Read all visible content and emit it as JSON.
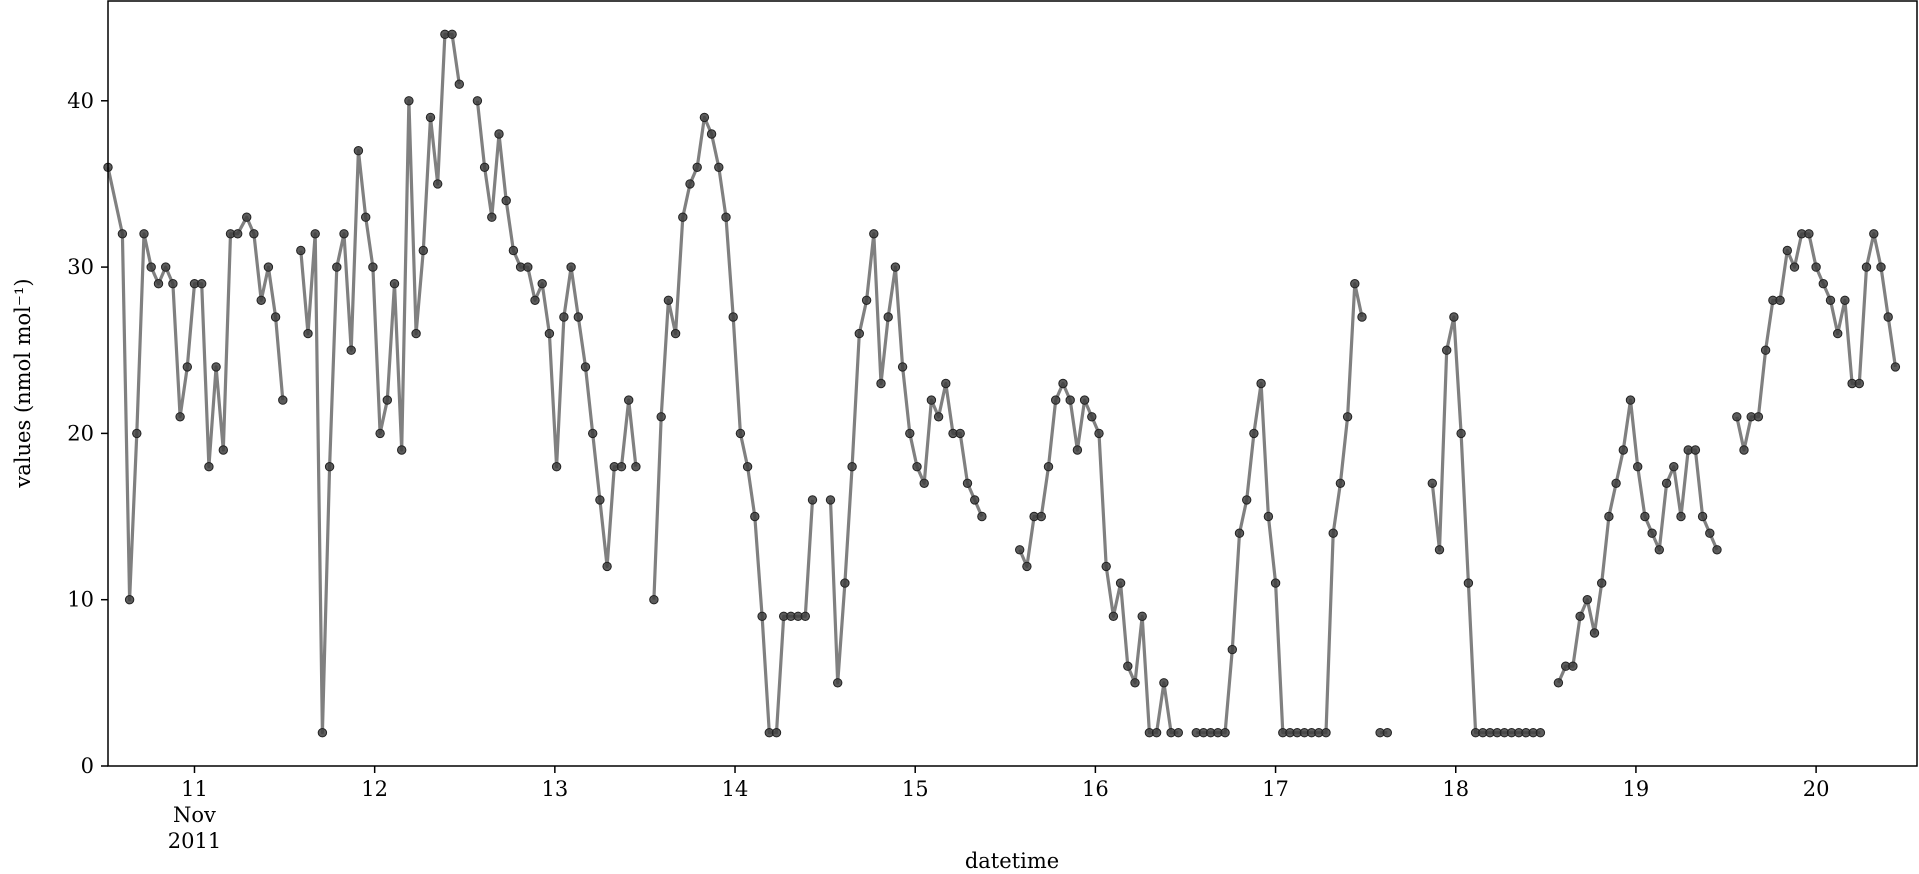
{
  "chart_data": {
    "type": "line",
    "xlabel": "datetime",
    "ylabel": "values (nmol mol⁻¹)",
    "ylim": [
      0,
      46
    ],
    "yticks": [
      0,
      10,
      20,
      30,
      40
    ],
    "xlim": [
      -0.48,
      9.56
    ],
    "xticks": [
      {
        "pos": 0,
        "label": "11",
        "sublabel": "Nov",
        "sublabel2": "2011"
      },
      {
        "pos": 1,
        "label": "12"
      },
      {
        "pos": 2,
        "label": "13"
      },
      {
        "pos": 3,
        "label": "14"
      },
      {
        "pos": 4,
        "label": "15"
      },
      {
        "pos": 5,
        "label": "16"
      },
      {
        "pos": 6,
        "label": "17"
      },
      {
        "pos": 7,
        "label": "18"
      },
      {
        "pos": 8,
        "label": "19"
      },
      {
        "pos": 9,
        "label": "20"
      }
    ],
    "x_unit": "days from 2011-11-11 00:00 (hourly samples)",
    "line_color": "#808080",
    "marker_color": "#404040",
    "grid": false,
    "series": [
      {
        "name": "values",
        "points": [
          [
            -0.48,
            36
          ],
          [
            -0.4,
            32
          ],
          [
            -0.36,
            10
          ],
          [
            -0.32,
            20
          ],
          [
            -0.28,
            32
          ],
          [
            -0.24,
            30
          ],
          [
            -0.2,
            29
          ],
          [
            -0.16,
            30
          ],
          [
            -0.12,
            29
          ],
          [
            -0.08,
            21
          ],
          [
            -0.04,
            24
          ],
          [
            0.0,
            29
          ],
          [
            0.04,
            29
          ],
          [
            0.08,
            18
          ],
          [
            0.12,
            24
          ],
          [
            0.16,
            19
          ],
          [
            0.2,
            32
          ],
          [
            0.24,
            32
          ],
          [
            0.29,
            33
          ],
          [
            0.33,
            32
          ],
          [
            0.37,
            28
          ],
          [
            0.41,
            30
          ],
          [
            0.45,
            27
          ],
          [
            0.49,
            22
          ],
          null,
          [
            0.59,
            31
          ],
          [
            0.63,
            26
          ],
          [
            0.67,
            32
          ],
          [
            0.71,
            2
          ],
          [
            0.75,
            18
          ],
          [
            0.79,
            30
          ],
          [
            0.83,
            32
          ],
          [
            0.87,
            25
          ],
          [
            0.91,
            37
          ],
          [
            0.95,
            33
          ],
          [
            0.99,
            30
          ],
          [
            1.03,
            20
          ],
          [
            1.07,
            22
          ],
          [
            1.11,
            29
          ],
          [
            1.15,
            19
          ],
          [
            1.19,
            40
          ],
          [
            1.23,
            26
          ],
          [
            1.27,
            31
          ],
          [
            1.31,
            39
          ],
          [
            1.35,
            35
          ],
          [
            1.39,
            44
          ],
          [
            1.43,
            44
          ],
          [
            1.47,
            41
          ],
          null,
          [
            1.57,
            40
          ],
          [
            1.61,
            36
          ],
          [
            1.65,
            33
          ],
          [
            1.69,
            38
          ],
          [
            1.73,
            34
          ],
          [
            1.77,
            31
          ],
          [
            1.81,
            30
          ],
          [
            1.85,
            30
          ],
          [
            1.89,
            28
          ],
          [
            1.93,
            29
          ],
          [
            1.97,
            26
          ],
          [
            2.01,
            18
          ],
          [
            2.05,
            27
          ],
          [
            2.09,
            30
          ],
          [
            2.13,
            27
          ],
          [
            2.17,
            24
          ],
          [
            2.21,
            20
          ],
          [
            2.25,
            16
          ],
          [
            2.29,
            12
          ],
          [
            2.33,
            18
          ],
          [
            2.37,
            18
          ],
          [
            2.41,
            22
          ],
          [
            2.45,
            18
          ],
          null,
          [
            2.55,
            10
          ],
          [
            2.59,
            21
          ],
          [
            2.63,
            28
          ],
          [
            2.67,
            26
          ],
          [
            2.71,
            33
          ],
          [
            2.75,
            35
          ],
          [
            2.79,
            36
          ],
          [
            2.83,
            39
          ],
          [
            2.87,
            38
          ],
          [
            2.91,
            36
          ],
          [
            2.95,
            33
          ],
          [
            2.99,
            27
          ],
          [
            3.03,
            20
          ],
          [
            3.07,
            18
          ],
          [
            3.11,
            15
          ],
          [
            3.15,
            9
          ],
          [
            3.19,
            2
          ],
          [
            3.23,
            2
          ],
          [
            3.27,
            9
          ],
          [
            3.31,
            9
          ],
          [
            3.35,
            9
          ],
          [
            3.39,
            9
          ],
          [
            3.43,
            16
          ],
          null,
          [
            3.53,
            16
          ],
          [
            3.57,
            5
          ],
          [
            3.61,
            11
          ],
          [
            3.65,
            18
          ],
          [
            3.69,
            26
          ],
          [
            3.73,
            28
          ],
          [
            3.77,
            32
          ],
          [
            3.81,
            23
          ],
          [
            3.85,
            27
          ],
          [
            3.89,
            30
          ],
          [
            3.93,
            24
          ],
          [
            3.97,
            20
          ],
          [
            4.01,
            18
          ],
          [
            4.05,
            17
          ],
          [
            4.09,
            22
          ],
          [
            4.13,
            21
          ],
          [
            4.17,
            23
          ],
          [
            4.21,
            20
          ],
          [
            4.25,
            20
          ],
          [
            4.29,
            17
          ],
          [
            4.33,
            16
          ],
          [
            4.37,
            15
          ],
          null,
          [
            4.58,
            13
          ],
          [
            4.62,
            12
          ],
          [
            4.66,
            15
          ],
          [
            4.7,
            15
          ],
          [
            4.74,
            18
          ],
          [
            4.78,
            22
          ],
          [
            4.82,
            23
          ],
          [
            4.86,
            22
          ],
          [
            4.9,
            19
          ],
          [
            4.94,
            22
          ],
          [
            4.98,
            21
          ],
          [
            5.02,
            20
          ],
          [
            5.06,
            12
          ],
          [
            5.1,
            9
          ],
          [
            5.14,
            11
          ],
          [
            5.18,
            6
          ],
          [
            5.22,
            5
          ],
          [
            5.26,
            9
          ],
          [
            5.3,
            2
          ],
          [
            5.34,
            2
          ],
          [
            5.38,
            5
          ],
          [
            5.42,
            2
          ],
          [
            5.46,
            2
          ],
          null,
          [
            5.56,
            2
          ],
          [
            5.6,
            2
          ],
          [
            5.64,
            2
          ],
          [
            5.68,
            2
          ],
          [
            5.72,
            2
          ],
          [
            5.76,
            7
          ],
          [
            5.8,
            14
          ],
          [
            5.84,
            16
          ],
          [
            5.88,
            20
          ],
          [
            5.92,
            23
          ],
          [
            5.96,
            15
          ],
          [
            6.0,
            11
          ],
          [
            6.04,
            2
          ],
          [
            6.08,
            2
          ],
          [
            6.12,
            2
          ],
          [
            6.16,
            2
          ],
          [
            6.2,
            2
          ],
          [
            6.24,
            2
          ],
          [
            6.28,
            2
          ],
          [
            6.32,
            14
          ],
          [
            6.36,
            17
          ],
          [
            6.4,
            21
          ],
          [
            6.44,
            29
          ],
          [
            6.48,
            27
          ],
          null,
          [
            6.58,
            2
          ],
          [
            6.62,
            2
          ],
          null,
          [
            6.87,
            17
          ],
          [
            6.91,
            13
          ],
          [
            6.95,
            25
          ],
          [
            6.99,
            27
          ],
          [
            7.03,
            20
          ],
          [
            7.07,
            11
          ],
          [
            7.11,
            2
          ],
          [
            7.15,
            2
          ],
          [
            7.19,
            2
          ],
          [
            7.23,
            2
          ],
          [
            7.27,
            2
          ],
          [
            7.31,
            2
          ],
          [
            7.35,
            2
          ],
          [
            7.39,
            2
          ],
          [
            7.43,
            2
          ],
          [
            7.47,
            2
          ],
          null,
          [
            7.57,
            5
          ],
          [
            7.61,
            6
          ],
          [
            7.65,
            6
          ],
          [
            7.69,
            9
          ],
          [
            7.73,
            10
          ],
          [
            7.77,
            8
          ],
          [
            7.81,
            11
          ],
          [
            7.85,
            15
          ],
          [
            7.89,
            17
          ],
          [
            7.93,
            19
          ],
          [
            7.97,
            22
          ],
          [
            8.01,
            18
          ],
          [
            8.05,
            15
          ],
          [
            8.09,
            14
          ],
          [
            8.13,
            13
          ],
          [
            8.17,
            17
          ],
          [
            8.21,
            18
          ],
          [
            8.25,
            15
          ],
          [
            8.29,
            19
          ],
          [
            8.33,
            19
          ],
          [
            8.37,
            15
          ],
          [
            8.41,
            14
          ],
          [
            8.45,
            13
          ],
          null,
          [
            8.56,
            21
          ],
          [
            8.6,
            19
          ],
          [
            8.64,
            21
          ],
          [
            8.68,
            21
          ],
          [
            8.72,
            25
          ],
          [
            8.76,
            28
          ],
          [
            8.8,
            28
          ],
          [
            8.84,
            31
          ],
          [
            8.88,
            30
          ],
          [
            8.92,
            32
          ],
          [
            8.96,
            32
          ],
          [
            9.0,
            30
          ],
          [
            9.04,
            29
          ],
          [
            9.08,
            28
          ],
          [
            9.12,
            26
          ],
          [
            9.16,
            28
          ],
          [
            9.2,
            23
          ],
          [
            9.24,
            23
          ],
          [
            9.28,
            30
          ],
          [
            9.32,
            32
          ],
          [
            9.36,
            30
          ],
          [
            9.4,
            27
          ],
          [
            9.44,
            24
          ]
        ]
      }
    ]
  }
}
